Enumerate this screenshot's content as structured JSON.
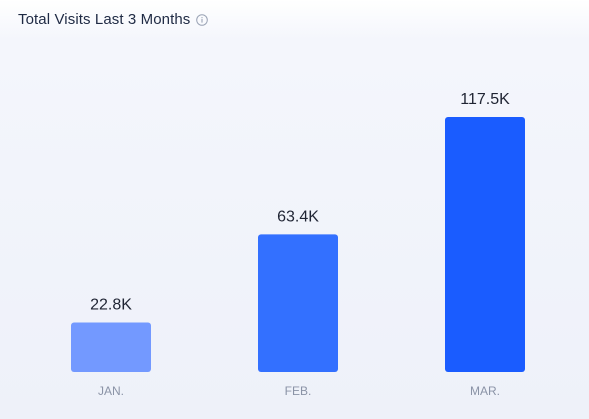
{
  "header": {
    "title": "Total Visits Last 3 Months",
    "info_icon": "info-icon"
  },
  "chart_data": {
    "type": "bar",
    "title": "Total Visits Last 3 Months",
    "categories": [
      "JAN.",
      "FEB.",
      "MAR."
    ],
    "values": [
      22800,
      63400,
      117500
    ],
    "data_labels": [
      "22.8K",
      "63.4K",
      "117.5K"
    ],
    "colors": [
      "#7399ff",
      "#3370ff",
      "#1a5cff"
    ],
    "xlabel": "",
    "ylabel": "",
    "ylim": [
      0,
      117500
    ],
    "grid": false,
    "legend": "none"
  }
}
